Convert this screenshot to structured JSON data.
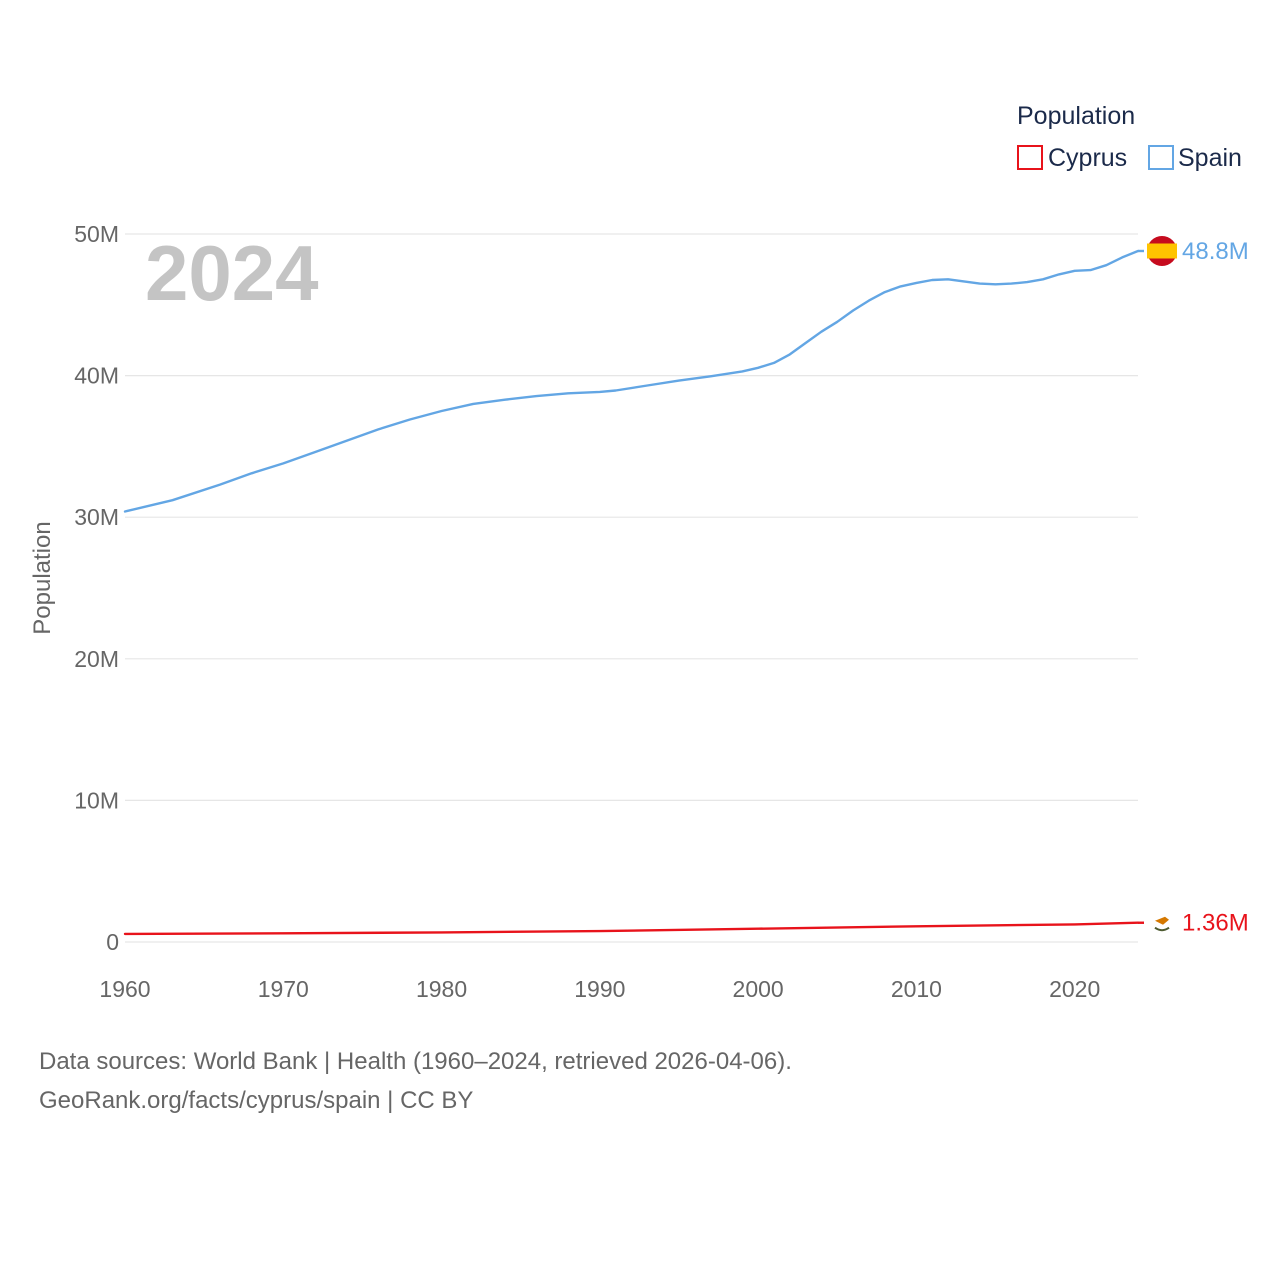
{
  "chart_data": {
    "type": "line",
    "year_label": "2024",
    "ylabel": "Population",
    "xlabel": "",
    "xlim": [
      1960,
      2024
    ],
    "ylim": [
      0,
      50000000
    ],
    "x_ticks": [
      1960,
      1970,
      1980,
      1990,
      2000,
      2010,
      2020
    ],
    "x_tick_labels": [
      "1960",
      "1970",
      "1980",
      "1990",
      "2000",
      "2010",
      "2020"
    ],
    "y_ticks": [
      0,
      10000000,
      20000000,
      30000000,
      40000000,
      50000000
    ],
    "y_tick_labels": [
      "0",
      "10M",
      "20M",
      "30M",
      "40M",
      "50M"
    ],
    "grid": true,
    "legend": {
      "title": "Population",
      "placement": "top-right",
      "entries": [
        {
          "name": "Cyprus",
          "color": "#e8131b"
        },
        {
          "name": "Spain",
          "color": "#63a6e4"
        }
      ]
    },
    "series": [
      {
        "name": "Cyprus",
        "color": "#e8131b",
        "end_label": "1.36M",
        "end_icon": "cyprus-flag-icon",
        "points": [
          [
            1960,
            570000
          ],
          [
            1970,
            615000
          ],
          [
            1980,
            680000
          ],
          [
            1990,
            770000
          ],
          [
            2000,
            940000
          ],
          [
            2010,
            1110000
          ],
          [
            2020,
            1240000
          ],
          [
            2024,
            1360000
          ]
        ]
      },
      {
        "name": "Spain",
        "color": "#63a6e4",
        "end_label": "48.8M",
        "end_icon": "spain-flag-icon",
        "points": [
          [
            1960,
            30400000
          ],
          [
            1963,
            31200000
          ],
          [
            1966,
            32300000
          ],
          [
            1968,
            33100000
          ],
          [
            1970,
            33800000
          ],
          [
            1972,
            34600000
          ],
          [
            1974,
            35400000
          ],
          [
            1976,
            36200000
          ],
          [
            1978,
            36900000
          ],
          [
            1980,
            37500000
          ],
          [
            1982,
            38000000
          ],
          [
            1984,
            38300000
          ],
          [
            1986,
            38550000
          ],
          [
            1988,
            38750000
          ],
          [
            1990,
            38850000
          ],
          [
            1991,
            38950000
          ],
          [
            1993,
            39300000
          ],
          [
            1995,
            39650000
          ],
          [
            1997,
            39950000
          ],
          [
            1999,
            40300000
          ],
          [
            2000,
            40550000
          ],
          [
            2001,
            40900000
          ],
          [
            2002,
            41500000
          ],
          [
            2003,
            42300000
          ],
          [
            2004,
            43100000
          ],
          [
            2005,
            43800000
          ],
          [
            2006,
            44600000
          ],
          [
            2007,
            45300000
          ],
          [
            2008,
            45900000
          ],
          [
            2009,
            46300000
          ],
          [
            2010,
            46550000
          ],
          [
            2011,
            46750000
          ],
          [
            2012,
            46800000
          ],
          [
            2013,
            46650000
          ],
          [
            2014,
            46500000
          ],
          [
            2015,
            46450000
          ],
          [
            2016,
            46500000
          ],
          [
            2017,
            46600000
          ],
          [
            2018,
            46800000
          ],
          [
            2019,
            47150000
          ],
          [
            2020,
            47400000
          ],
          [
            2021,
            47450000
          ],
          [
            2022,
            47800000
          ],
          [
            2023,
            48350000
          ],
          [
            2024,
            48800000
          ]
        ]
      }
    ]
  },
  "footer": {
    "source_line": "Data sources: World Bank | Health (1960–2024, retrieved 2026-04-06).",
    "credit_line": "GeoRank.org/facts/cyprus/spain | CC BY"
  },
  "colors": {
    "grid": "#e6e6e6",
    "tick_text": "#666666",
    "legend_text": "#1b2a4a",
    "watermark": "#c4c4c4",
    "spain_flag_red": "#c60b1e",
    "spain_flag_yellow": "#ffc400",
    "cyprus_flag_copper": "#d57800",
    "cyprus_flag_olive": "#4e5b31"
  }
}
